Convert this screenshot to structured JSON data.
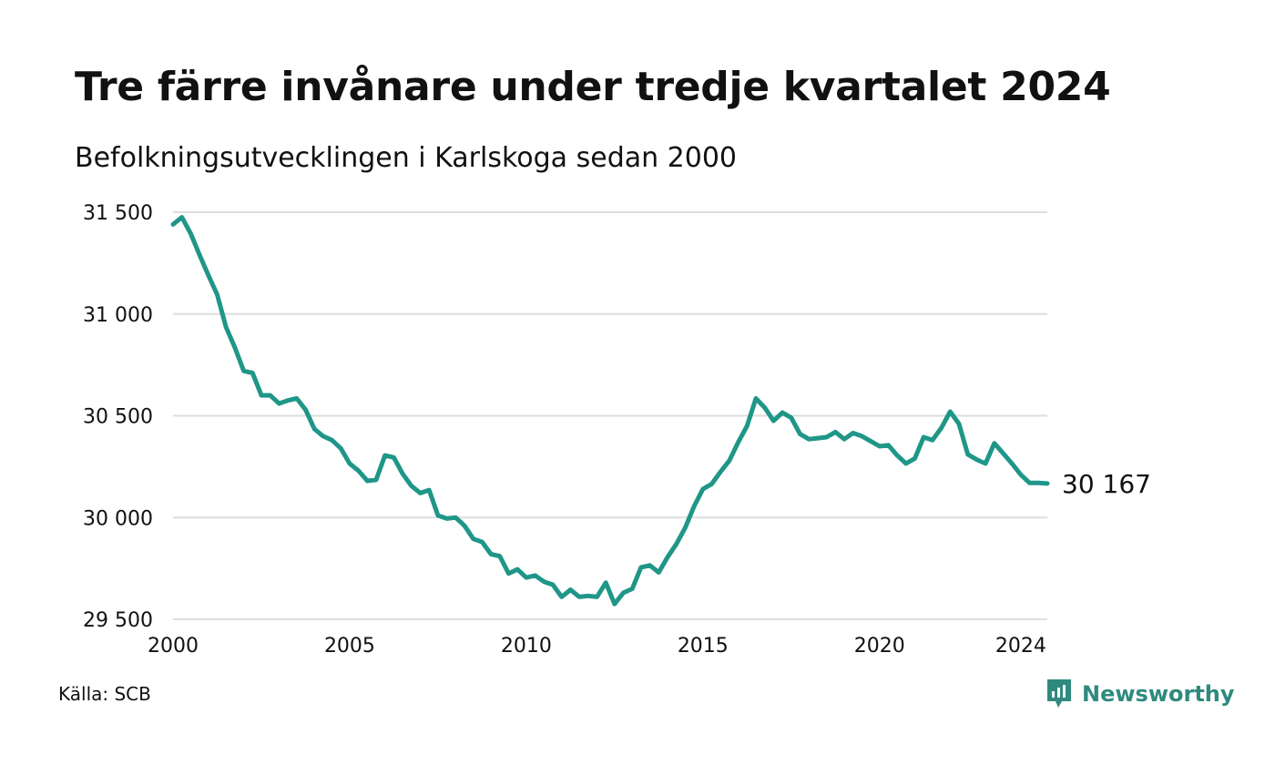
{
  "title": "Tre färre invånare under tredje kvartalet 2024",
  "subtitle": "Befolkningsutvecklingen i Karlskoga sedan 2000",
  "source": "Källa: SCB",
  "brand": {
    "name": "Newsworthy",
    "icon": "newsworthy-logo-icon",
    "color": "#2f8a7e"
  },
  "chart_data": {
    "type": "line",
    "title": "Tre färre invånare under tredje kvartalet 2024",
    "subtitle": "Befolkningsutvecklingen i Karlskoga sedan 2000",
    "xlabel": "",
    "ylabel": "",
    "xlim": [
      2000,
      2024.75
    ],
    "ylim": [
      29500,
      31500
    ],
    "x_ticks": [
      {
        "value": 2000,
        "label": "2000"
      },
      {
        "value": 2005,
        "label": "2005"
      },
      {
        "value": 2010,
        "label": "2010"
      },
      {
        "value": 2015,
        "label": "2015"
      },
      {
        "value": 2020,
        "label": "2020"
      },
      {
        "value": 2024,
        "label": "2024"
      }
    ],
    "y_ticks": [
      {
        "value": 31500,
        "label": "31 500"
      },
      {
        "value": 31000,
        "label": "31 000"
      },
      {
        "value": 30500,
        "label": "30 500"
      },
      {
        "value": 30000,
        "label": "30 000"
      },
      {
        "value": 29500,
        "label": "29 500"
      }
    ],
    "grid": "horizontal",
    "line_color": "#1f9688",
    "end_label": "30 167",
    "x": [
      2000.0,
      2000.25,
      2000.5,
      2000.75,
      2001.0,
      2001.25,
      2001.5,
      2001.75,
      2002.0,
      2002.25,
      2002.5,
      2002.75,
      2003.0,
      2003.25,
      2003.5,
      2003.75,
      2004.0,
      2004.25,
      2004.5,
      2004.75,
      2005.0,
      2005.25,
      2005.5,
      2005.75,
      2006.0,
      2006.25,
      2006.5,
      2006.75,
      2007.0,
      2007.25,
      2007.5,
      2007.75,
      2008.0,
      2008.25,
      2008.5,
      2008.75,
      2009.0,
      2009.25,
      2009.5,
      2009.75,
      2010.0,
      2010.25,
      2010.5,
      2010.75,
      2011.0,
      2011.25,
      2011.5,
      2011.75,
      2012.0,
      2012.25,
      2012.5,
      2012.75,
      2013.0,
      2013.25,
      2013.5,
      2013.75,
      2014.0,
      2014.25,
      2014.5,
      2014.75,
      2015.0,
      2015.25,
      2015.5,
      2015.75,
      2016.0,
      2016.25,
      2016.5,
      2016.75,
      2017.0,
      2017.25,
      2017.5,
      2017.75,
      2018.0,
      2018.25,
      2018.5,
      2018.75,
      2019.0,
      2019.25,
      2019.5,
      2019.75,
      2020.0,
      2020.25,
      2020.5,
      2020.75,
      2021.0,
      2021.25,
      2021.5,
      2021.75,
      2022.0,
      2022.25,
      2022.5,
      2022.75,
      2023.0,
      2023.25,
      2023.5,
      2023.75,
      2024.0,
      2024.25,
      2024.5,
      2024.75
    ],
    "series": [
      {
        "values": [
          31440,
          31475,
          31395,
          31290,
          31190,
          31095,
          30935,
          30835,
          30720,
          30710,
          30600,
          30600,
          30560,
          30575,
          30585,
          30530,
          30435,
          30400,
          30380,
          30340,
          30265,
          30230,
          30180,
          30185,
          30305,
          30295,
          30215,
          30155,
          30120,
          30135,
          30010,
          29995,
          30000,
          29960,
          29895,
          29880,
          29820,
          29810,
          29725,
          29745,
          29705,
          29715,
          29685,
          29670,
          29610,
          29645,
          29610,
          29615,
          29610,
          29680,
          29575,
          29630,
          29650,
          29755,
          29765,
          29730,
          29805,
          29870,
          29950,
          30055,
          30140,
          30165,
          30225,
          30280,
          30370,
          30450,
          30585,
          30540,
          30475,
          30515,
          30490,
          30410,
          30385,
          30390,
          30395,
          30420,
          30385,
          30415,
          30400,
          30375,
          30350,
          30355,
          30305,
          30265,
          30290,
          30395,
          30380,
          30440,
          30520,
          30460,
          30310,
          30285,
          30265,
          30365,
          30315,
          30265,
          30210,
          30170,
          30170,
          30167
        ]
      }
    ]
  }
}
